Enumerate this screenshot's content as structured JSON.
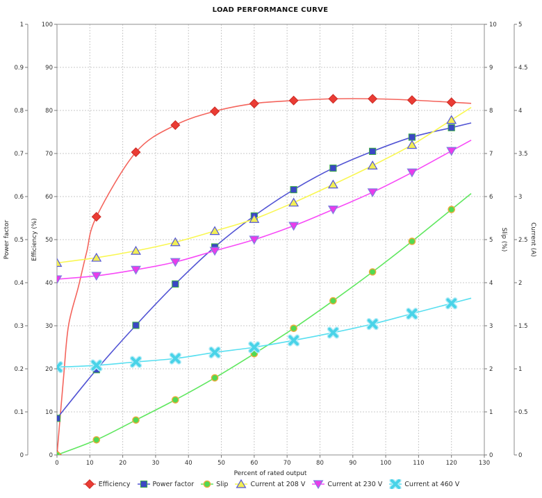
{
  "title": "LOAD PERFORMANCE CURVE",
  "chart_data": {
    "type": "line",
    "title": "LOAD PERFORMANCE CURVE",
    "xlabel": "Percent of rated output",
    "grid": true,
    "legend_position": "bottom",
    "x_axis": {
      "min": 0,
      "max": 130,
      "tick_step": 10
    },
    "x": [
      0,
      12,
      24,
      36,
      48,
      60,
      72,
      84,
      96,
      108,
      120
    ],
    "axes": [
      {
        "id": "pf",
        "label": "Power factor",
        "side": "left",
        "position": "outer",
        "min": 0,
        "max": 1,
        "tick_step": 0.1
      },
      {
        "id": "eff",
        "label": "Efficiency (%)",
        "side": "left",
        "position": "inner",
        "min": 0,
        "max": 100,
        "tick_step": 10
      },
      {
        "id": "slip",
        "label": "Slip (%)",
        "side": "right",
        "position": "inner",
        "min": 0,
        "max": 10,
        "tick_step": 1
      },
      {
        "id": "cur",
        "label": "Current (A)",
        "side": "right",
        "position": "outer",
        "min": 0,
        "max": 5,
        "tick_step": 0.5
      }
    ],
    "series": [
      {
        "name": "Efficiency",
        "axis": "eff",
        "marker": "diamond",
        "line_color": "#f4645c",
        "marker_fill": "#ea3c34",
        "marker_edge": "#cc2a24",
        "values": [
          0,
          55.3,
          70.3,
          76.6,
          79.8,
          81.6,
          82.3,
          82.7,
          82.7,
          82.4,
          81.9
        ],
        "line_shape_hints": [
          [
            2,
            18
          ],
          [
            3.5,
            30
          ],
          [
            6.5,
            39
          ],
          [
            9,
            47
          ]
        ]
      },
      {
        "name": "Power factor",
        "axis": "pf",
        "marker": "square",
        "line_color": "#5153d4",
        "marker_fill": "#3b47c4",
        "marker_edge": "#3faf46",
        "values": [
          0.085,
          0.198,
          0.301,
          0.397,
          0.483,
          0.555,
          0.616,
          0.666,
          0.705,
          0.738,
          0.76
        ]
      },
      {
        "name": "Slip",
        "axis": "slip",
        "marker": "circle",
        "line_color": "#5fe75f",
        "marker_fill": "#52d952",
        "marker_edge": "#edaa3a",
        "values": [
          0,
          0.35,
          0.81,
          1.28,
          1.79,
          2.35,
          2.94,
          3.58,
          4.25,
          4.96,
          5.7
        ]
      },
      {
        "name": "Current at 208 V",
        "axis": "cur",
        "marker": "triangle-up",
        "line_color": "#f9f751",
        "marker_fill": "#f2ee55",
        "marker_edge": "#5356d6",
        "values": [
          2.23,
          2.29,
          2.37,
          2.47,
          2.6,
          2.74,
          2.93,
          3.14,
          3.36,
          3.6,
          3.89
        ]
      },
      {
        "name": "Current at 230 V",
        "axis": "cur",
        "marker": "triangle-down",
        "line_color": "#f74af7",
        "marker_fill": "#ea3bea",
        "marker_edge": "#7f7fe0",
        "values": [
          2.04,
          2.08,
          2.15,
          2.24,
          2.37,
          2.5,
          2.66,
          2.85,
          3.05,
          3.28,
          3.53
        ]
      },
      {
        "name": "Current at 460 V",
        "axis": "cur",
        "marker": "x-cross",
        "line_color": "#58dff0",
        "marker_fill": "#49d3e8",
        "marker_edge": "#b4ecf7",
        "values": [
          1.02,
          1.04,
          1.08,
          1.12,
          1.19,
          1.25,
          1.33,
          1.42,
          1.52,
          1.64,
          1.76
        ]
      }
    ]
  }
}
